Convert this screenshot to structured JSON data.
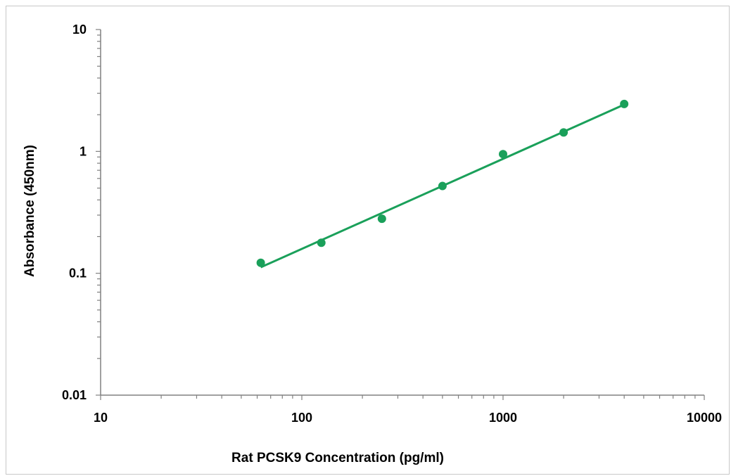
{
  "chart_data": {
    "type": "scatter",
    "title": "",
    "xlabel": "Rat PCSK9  Concentration (pg/ml)",
    "ylabel": "Absorbance (450nm)",
    "xscale": "log",
    "yscale": "log",
    "xlim": [
      10,
      10000
    ],
    "ylim": [
      0.01,
      10
    ],
    "x_tick_labels": [
      "10",
      "100",
      "1000",
      "10000"
    ],
    "y_tick_labels": [
      "0.01",
      "0.1",
      "1",
      "10"
    ],
    "grid": false,
    "legend": "none",
    "colors": {
      "series": "#1aa05a",
      "axis": "#808080"
    },
    "series": [
      {
        "x": [
          62.5,
          125,
          250,
          500,
          1000,
          2000,
          4000
        ],
        "y": [
          0.122,
          0.178,
          0.28,
          0.52,
          0.95,
          1.43,
          2.45
        ],
        "marker": "circle",
        "trendline": {
          "type": "power",
          "from": {
            "x": 62.5,
            "y": 0.112
          },
          "to": {
            "x": 4000,
            "y": 2.42
          }
        }
      }
    ]
  }
}
